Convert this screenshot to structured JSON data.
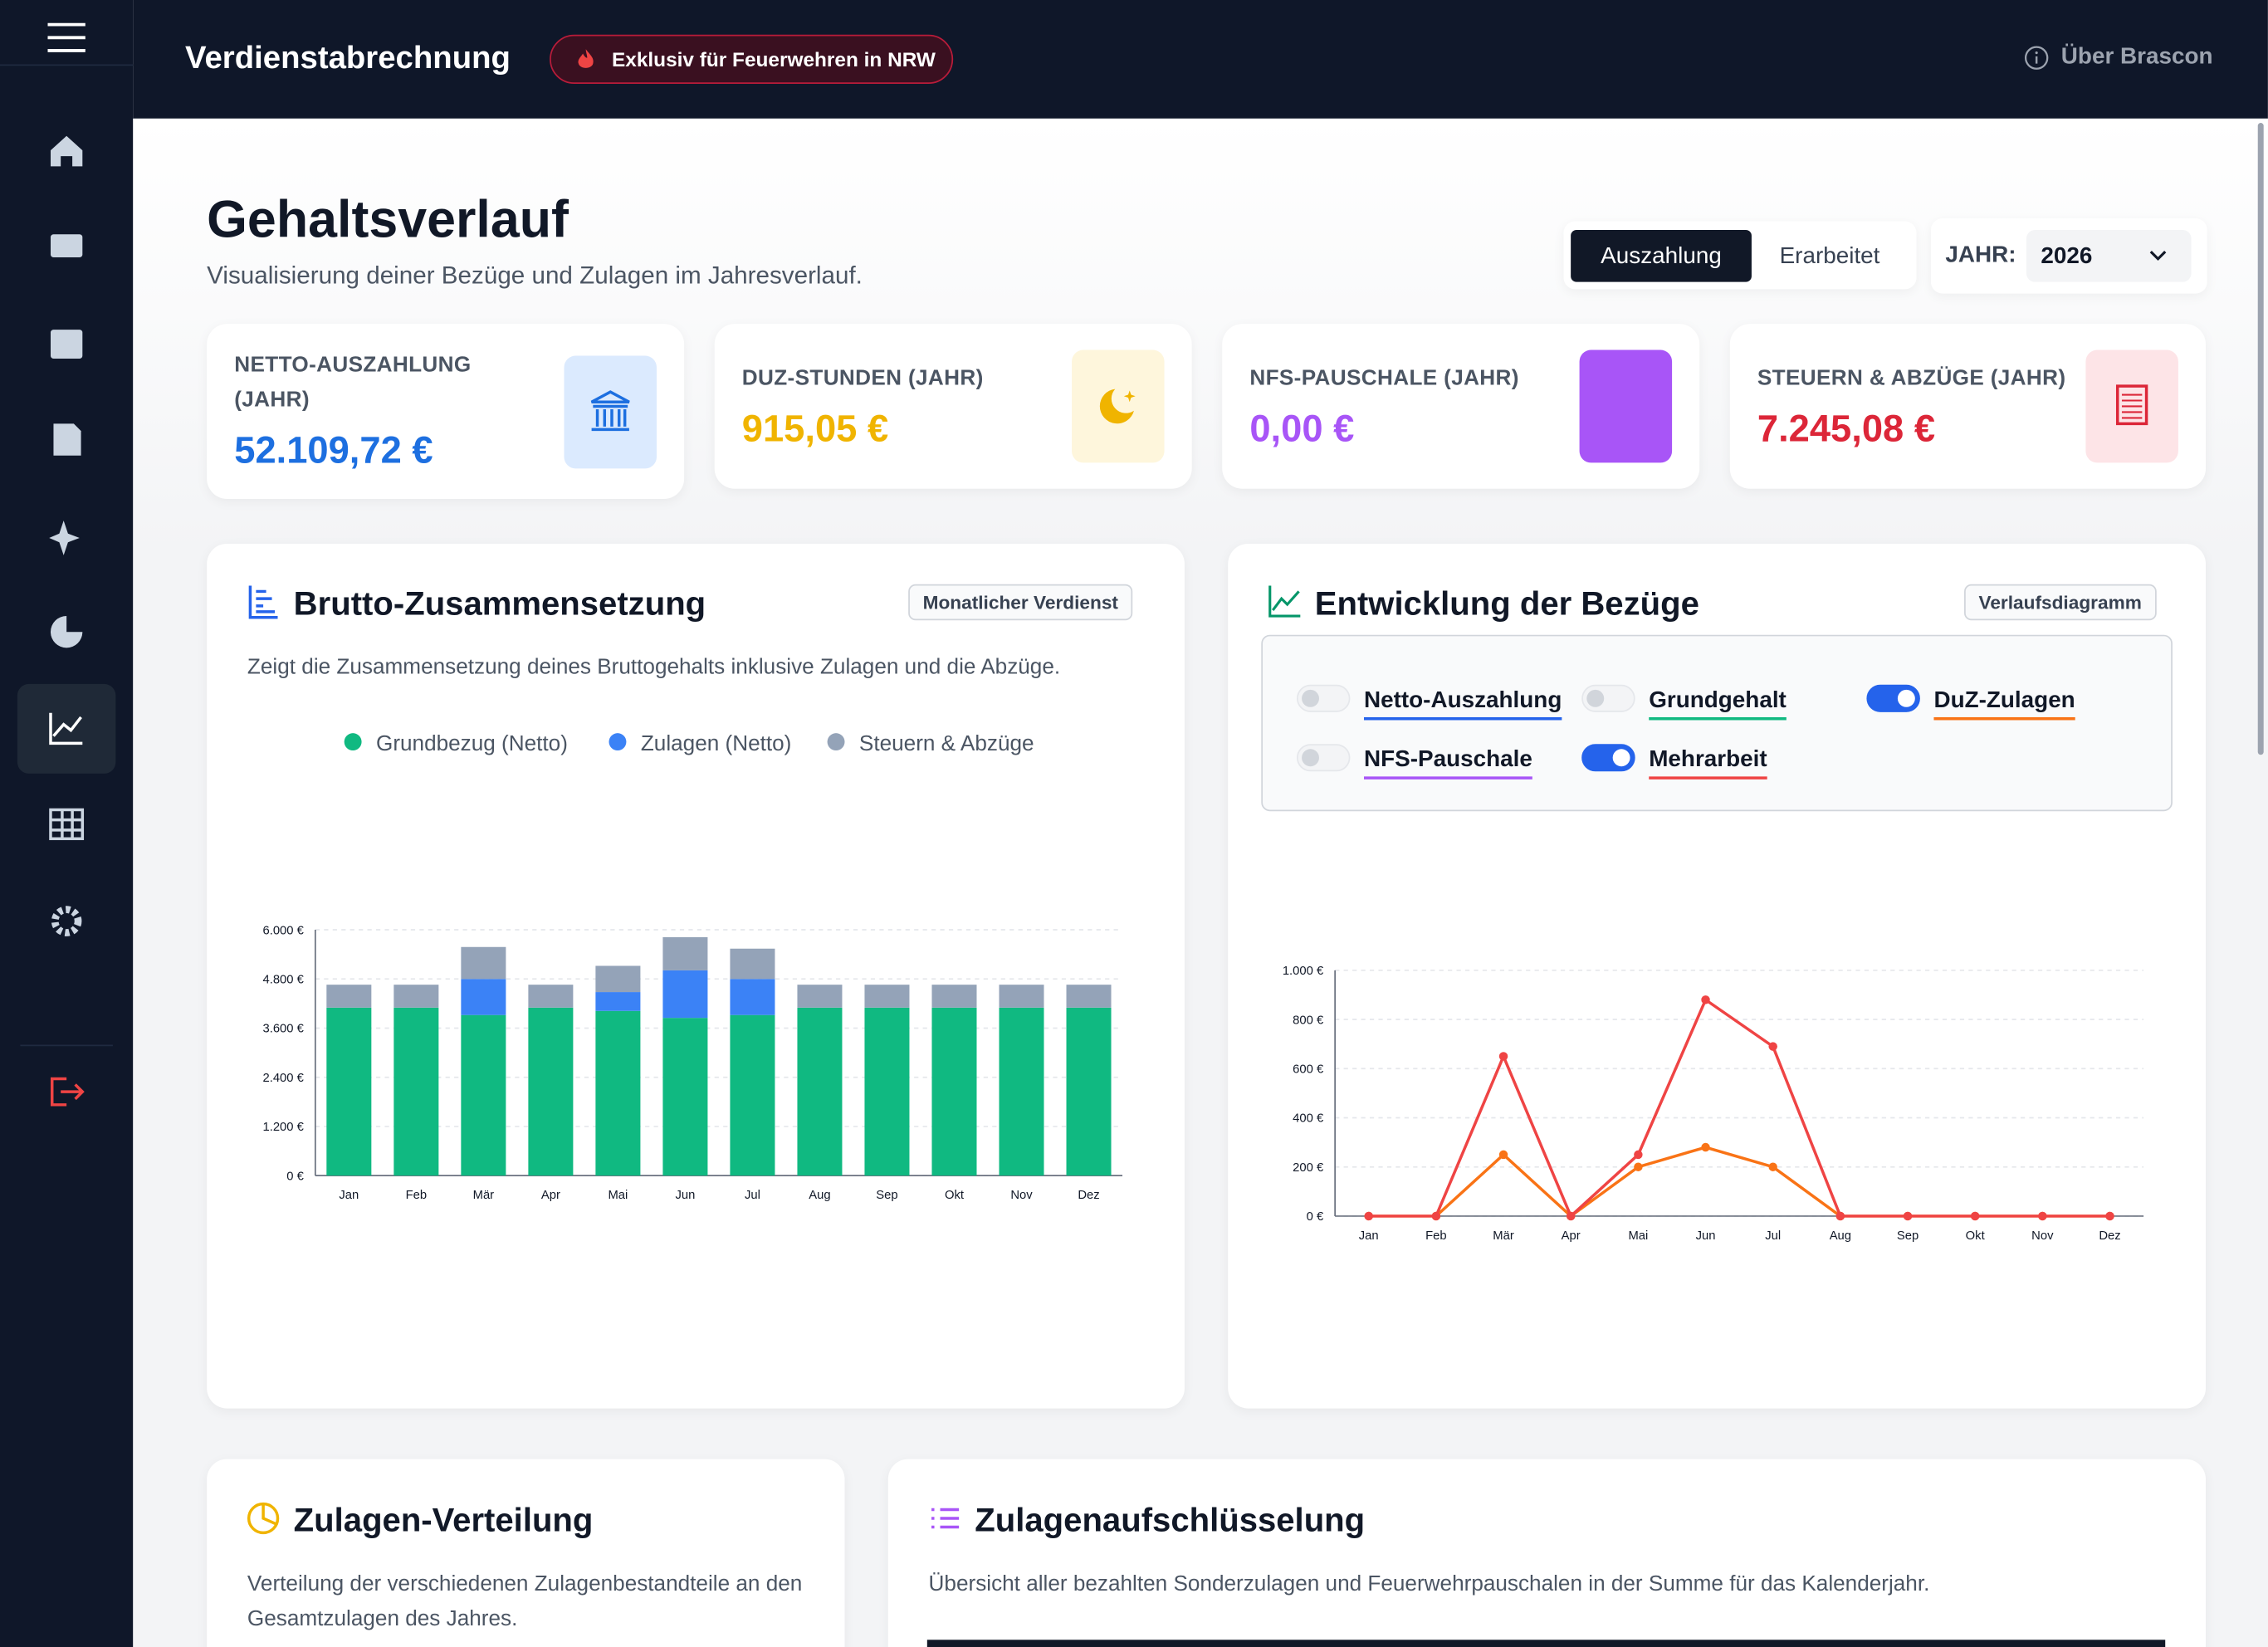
{
  "header": {
    "title": "Verdienstabrechnung",
    "badge": "Exklusiv für Feuerwehren in NRW",
    "about": "Über Brascon"
  },
  "page": {
    "title": "Gehaltsverlauf",
    "subtitle": "Visualisierung deiner Bezüge und Zulagen im Jahresverlauf.",
    "views": [
      "Auszahlung",
      "Erarbeitet"
    ],
    "year_label": "JAHR:",
    "year": "2026"
  },
  "cards": [
    {
      "label": "NETTO-AUSZAHLUNG (JAHR)",
      "value": "52.109,72 €",
      "color": "#1d6fe0"
    },
    {
      "label": "DUZ-STUNDEN (JAHR)",
      "value": "915,05 €",
      "color": "#f0b400"
    },
    {
      "label": "NFS-PAUSCHALE (JAHR)",
      "value": "0,00 €",
      "color": "#a855f7"
    },
    {
      "label": "STEUERN & ABZÜGE (JAHR)",
      "value": "7.245,08 €",
      "color": "#dc2638"
    }
  ],
  "composition": {
    "title": "Brutto-Zusammensetzung",
    "badge": "Monatlicher Verdienst",
    "description": "Zeigt die Zusammensetzung deines Bruttogehalts inklusive Zulagen und die Abzüge.",
    "chart_data": {
      "type": "stacked-bar",
      "categories": [
        "Jan",
        "Feb",
        "Mär",
        "Apr",
        "Mai",
        "Jun",
        "Jul",
        "Aug",
        "Sep",
        "Okt",
        "Nov",
        "Dez"
      ],
      "series": [
        {
          "name": "Grundbezug (Netto)",
          "color": "#10b981",
          "values": [
            4100,
            4100,
            3920,
            4100,
            4020,
            3850,
            3920,
            4100,
            4100,
            4100,
            4100,
            4100
          ]
        },
        {
          "name": "Zulagen (Netto)",
          "color": "#3b82f6",
          "values": [
            0,
            0,
            880,
            0,
            460,
            1160,
            880,
            0,
            0,
            0,
            0,
            0
          ]
        },
        {
          "name": "Steuern & Abzüge",
          "color": "#94a3b8",
          "values": [
            560,
            560,
            780,
            560,
            640,
            810,
            740,
            560,
            560,
            560,
            560,
            560
          ]
        }
      ],
      "ylim": [
        0,
        6000
      ],
      "yticks": [
        {
          "value": 0,
          "label": "0 €"
        },
        {
          "value": 1200,
          "label": "1.200 €"
        },
        {
          "value": 2400,
          "label": "2.400 €"
        },
        {
          "value": 3600,
          "label": "3.600 €"
        },
        {
          "value": 4800,
          "label": "4.800 €"
        },
        {
          "value": 6000,
          "label": "6.000 €"
        }
      ],
      "grid": true
    }
  },
  "development": {
    "title": "Entwicklung der Bezüge",
    "badge": "Verlaufsdiagramm",
    "chart_data": {
      "type": "line",
      "categories": [
        "Jan",
        "Feb",
        "Mär",
        "Apr",
        "Mai",
        "Jun",
        "Jul",
        "Aug",
        "Sep",
        "Okt",
        "Nov",
        "Dez"
      ],
      "series": [
        {
          "name": "Netto-Auszahlung",
          "color": "#2563eb",
          "visible": false
        },
        {
          "name": "Grundgehalt",
          "color": "#10b981",
          "visible": false
        },
        {
          "name": "DuZ-Zulagen",
          "color": "#f97316",
          "visible": true,
          "values": [
            0,
            0,
            250,
            0,
            200,
            280,
            200,
            0,
            0,
            0,
            0,
            0
          ]
        },
        {
          "name": "NFS-Pauschale",
          "color": "#a855f7",
          "visible": false
        },
        {
          "name": "Mehrarbeit",
          "color": "#ef4444",
          "visible": true,
          "values": [
            0,
            0,
            650,
            0,
            250,
            880,
            690,
            0,
            0,
            0,
            0,
            0
          ]
        }
      ],
      "ylim": [
        0,
        1000
      ],
      "yticks": [
        {
          "value": 0,
          "label": "0 €"
        },
        {
          "value": 200,
          "label": "200 €"
        },
        {
          "value": 400,
          "label": "400 €"
        },
        {
          "value": 600,
          "label": "600 €"
        },
        {
          "value": 800,
          "label": "800 €"
        },
        {
          "value": 1000,
          "label": "1.000 €"
        }
      ],
      "grid": true
    }
  },
  "distribution": {
    "title": "Zulagen-Verteilung",
    "description": "Verteilung der verschiedenen Zulagenbestandteile an den Gesamtzulagen des Jahres."
  },
  "breakdown": {
    "title": "Zulagenaufschlüsselung",
    "description": "Übersicht aller bezahlten Sonderzulagen und Feuerwehrpauschalen in der Summe für das Kalenderjahr."
  }
}
